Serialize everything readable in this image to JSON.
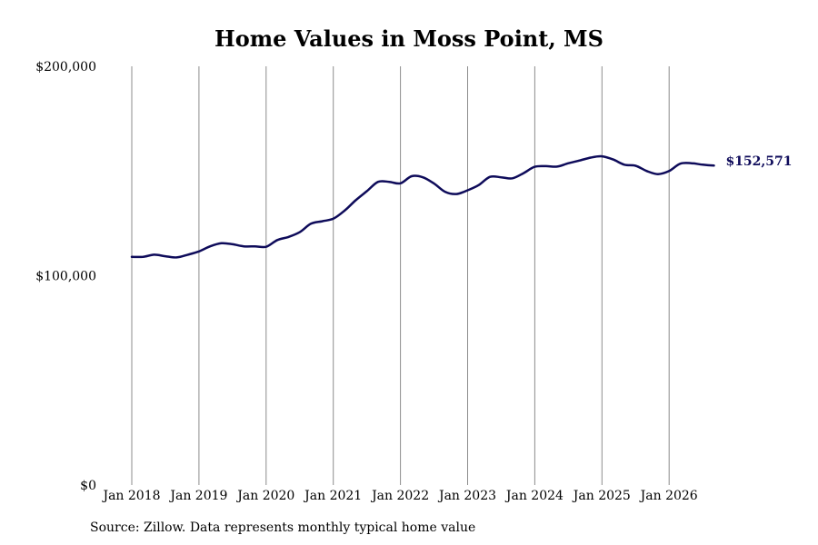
{
  "chart_data": {
    "type": "line",
    "title": "Home Values in Moss Point, MS",
    "xlabel": "",
    "ylabel": "",
    "ylim": [
      0,
      200000
    ],
    "y_ticks": [
      "$0",
      "$100,000",
      "$200,000"
    ],
    "y_tick_values": [
      0,
      100000,
      200000
    ],
    "x_tick_labels": [
      "Jan 2018",
      "Jan 2019",
      "Jan 2020",
      "Jan 2021",
      "Jan 2022",
      "Jan 2023",
      "Jan 2024",
      "Jan 2025",
      "Jan 2026"
    ],
    "x_tick_values": [
      "2018-01",
      "2019-01",
      "2020-01",
      "2021-01",
      "2022-01",
      "2023-01",
      "2024-01",
      "2025-01",
      "2026-01"
    ],
    "grid": "vertical",
    "line_color": "#0e0b5a",
    "end_label": "$152,571",
    "x": [
      "2018-01",
      "2018-03",
      "2018-05",
      "2018-07",
      "2018-09",
      "2018-11",
      "2019-01",
      "2019-03",
      "2019-05",
      "2019-07",
      "2019-09",
      "2019-11",
      "2020-01",
      "2020-03",
      "2020-05",
      "2020-07",
      "2020-09",
      "2020-11",
      "2021-01",
      "2021-03",
      "2021-05",
      "2021-07",
      "2021-09",
      "2021-11",
      "2022-01",
      "2022-03",
      "2022-05",
      "2022-07",
      "2022-09",
      "2022-11",
      "2023-01",
      "2023-03",
      "2023-05",
      "2023-07",
      "2023-09",
      "2023-11",
      "2024-01",
      "2024-03",
      "2024-05",
      "2024-07",
      "2024-09",
      "2024-11",
      "2025-01",
      "2025-03",
      "2025-05",
      "2025-07",
      "2025-09",
      "2025-11",
      "2026-01",
      "2026-03",
      "2026-05",
      "2026-07",
      "2026-09"
    ],
    "values": [
      109000,
      109000,
      110000,
      109300,
      108700,
      110000,
      111600,
      114000,
      115500,
      115000,
      114000,
      114000,
      113800,
      117000,
      118500,
      120800,
      124800,
      126000,
      127200,
      131000,
      136000,
      140400,
      144800,
      144800,
      144100,
      147500,
      147000,
      144000,
      140000,
      139000,
      140800,
      143300,
      147200,
      147000,
      146500,
      149000,
      152000,
      152300,
      152100,
      153700,
      155000,
      156400,
      157000,
      155500,
      153000,
      152500,
      150000,
      148500,
      150000,
      153500,
      153700,
      153000,
      152571
    ]
  },
  "source_note": "Source: Zillow. Data represents monthly typical home value"
}
